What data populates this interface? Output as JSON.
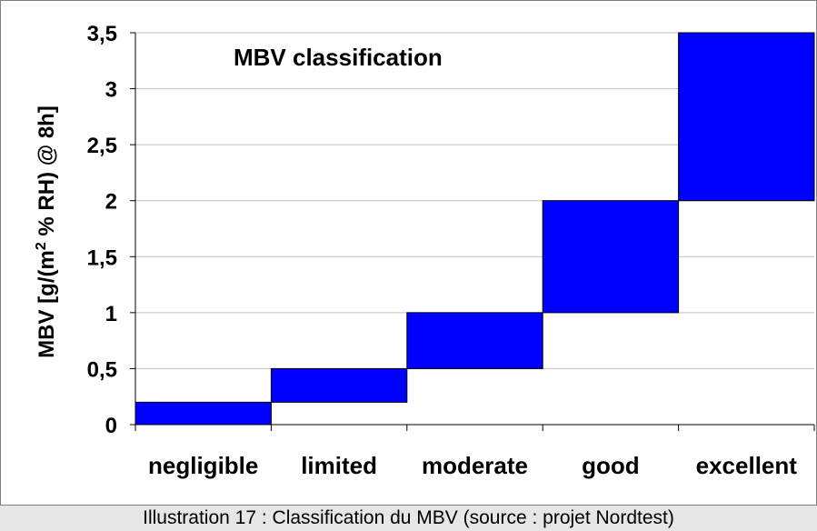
{
  "chart_data": {
    "type": "bar",
    "subtype": "floating-range",
    "title": "MBV classification",
    "ylabel": "MBV [g/(m² % RH) @ 8h]",
    "xlabel": "",
    "categories": [
      "negligible",
      "limited",
      "moderate",
      "good",
      "excellent"
    ],
    "ranges": [
      [
        0,
        0.2
      ],
      [
        0.2,
        0.5
      ],
      [
        0.5,
        1.0
      ],
      [
        1.0,
        2.0
      ],
      [
        2.0,
        3.5
      ]
    ],
    "yticks": [
      "0",
      "0,5",
      "1",
      "1,5",
      "2",
      "2,5",
      "3",
      "3,5"
    ],
    "ylim": [
      0,
      3.5
    ],
    "grid": true,
    "bar_color": "#0000ff",
    "grid_color": "#bfbfbf"
  },
  "caption": "Illustration 17 : Classification du MBV (source : projet Nordtest)"
}
